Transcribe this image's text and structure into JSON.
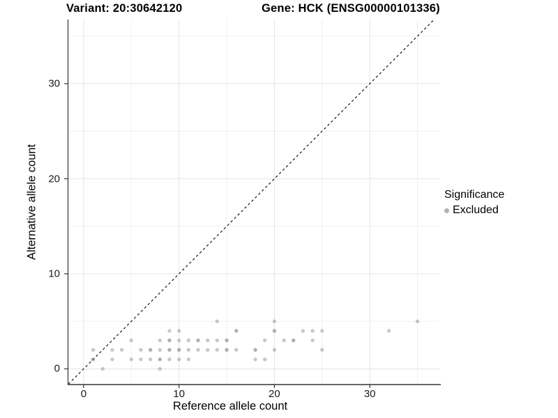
{
  "chart_data": {
    "type": "scatter",
    "title_left": "Variant: 20:30642120",
    "title_right": "Gene: HCK (ENSG00000101336)",
    "xlabel": "Reference allele count",
    "ylabel": "Alternative allele count",
    "x_ticks": [
      0,
      10,
      20,
      30
    ],
    "y_ticks": [
      0,
      10,
      20,
      30
    ],
    "x_minor_ticks": [
      5,
      15,
      25,
      35
    ],
    "y_minor_ticks": [
      5,
      15,
      25,
      35
    ],
    "xlim": [
      -1.6,
      37.3
    ],
    "ylim": [
      -1.65,
      36.75
    ],
    "grid": true,
    "identity_line": {
      "equation": "y = x",
      "style": "dashed",
      "color": "#000000"
    },
    "legend": {
      "title": "Significance",
      "position": "right",
      "items": [
        {
          "label": "Excluded",
          "color": "#b2b2b2"
        }
      ]
    },
    "series": [
      {
        "name": "Excluded",
        "color": "#7f7f7f",
        "points_format": "[reference_allele_count, alternative_allele_count, overplot_level]",
        "points": [
          [
            2,
            0,
            1
          ],
          [
            8,
            0,
            1
          ],
          [
            1,
            1,
            2
          ],
          [
            3,
            1,
            1
          ],
          [
            5,
            1,
            1
          ],
          [
            6,
            1,
            1
          ],
          [
            7,
            1,
            1
          ],
          [
            8,
            1,
            2
          ],
          [
            9,
            1,
            1
          ],
          [
            10,
            1,
            1
          ],
          [
            11,
            1,
            1
          ],
          [
            18,
            1,
            1
          ],
          [
            19,
            1,
            1
          ],
          [
            1,
            2,
            1
          ],
          [
            3,
            2,
            1
          ],
          [
            4,
            2,
            1
          ],
          [
            6,
            2,
            1
          ],
          [
            7,
            2,
            2
          ],
          [
            8,
            2,
            1
          ],
          [
            9,
            2,
            2
          ],
          [
            10,
            2,
            2
          ],
          [
            11,
            2,
            1
          ],
          [
            12,
            2,
            1
          ],
          [
            13,
            2,
            1
          ],
          [
            14,
            2,
            1
          ],
          [
            15,
            2,
            2
          ],
          [
            16,
            2,
            1
          ],
          [
            18,
            2,
            2
          ],
          [
            20,
            2,
            1
          ],
          [
            25,
            2,
            1
          ],
          [
            5,
            3,
            1
          ],
          [
            8,
            3,
            1
          ],
          [
            9,
            3,
            2
          ],
          [
            10,
            3,
            1
          ],
          [
            11,
            3,
            1
          ],
          [
            12,
            3,
            2
          ],
          [
            13,
            3,
            1
          ],
          [
            14,
            3,
            1
          ],
          [
            15,
            3,
            2
          ],
          [
            19,
            3,
            1
          ],
          [
            21,
            3,
            1
          ],
          [
            22,
            3,
            2
          ],
          [
            24,
            3,
            1
          ],
          [
            9,
            4,
            1
          ],
          [
            10,
            4,
            1
          ],
          [
            16,
            4,
            2
          ],
          [
            20,
            4,
            2
          ],
          [
            23,
            4,
            1
          ],
          [
            24,
            4,
            1
          ],
          [
            25,
            4,
            1
          ],
          [
            32,
            4,
            1
          ],
          [
            14,
            5,
            1
          ],
          [
            20,
            5,
            1
          ],
          [
            35,
            5,
            1
          ]
        ]
      }
    ]
  },
  "colors": {
    "background": "#ffffff",
    "grid_major": "#e4e4e4",
    "grid_minor": "#f0f0f0",
    "axis_line": "#333333",
    "tick_label": "#1a1a1a",
    "point": "#7f7f7f",
    "legend_key": "#b2b2b2"
  }
}
